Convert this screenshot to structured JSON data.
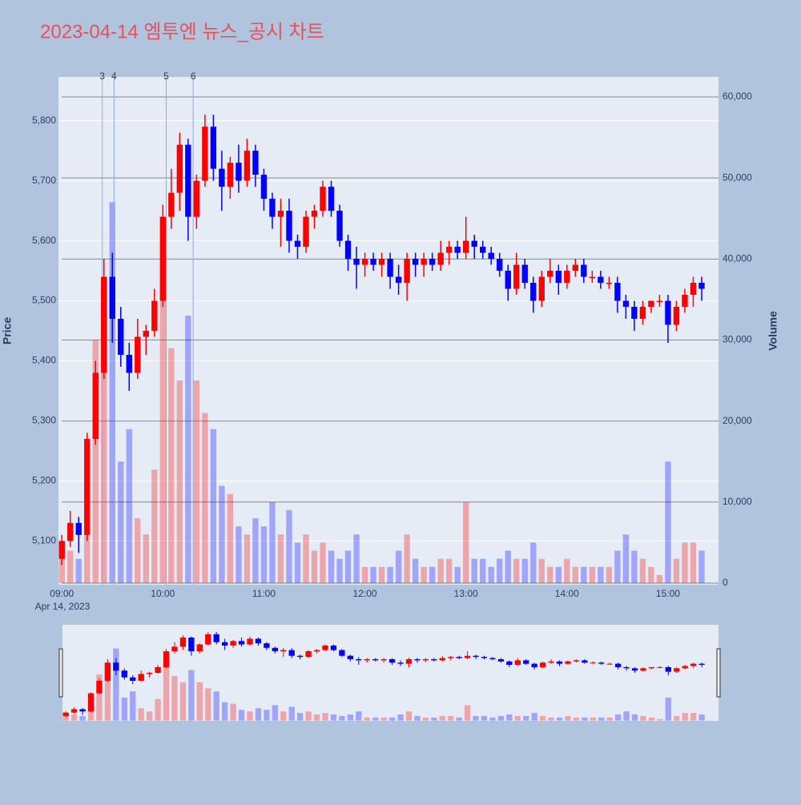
{
  "chart_data": {
    "type": "candlestick",
    "title": "2023-04-14 엠투엔 뉴스_공시 차트",
    "y_title": "Price",
    "y2_title": "Volume",
    "x_sublabel": "Apr 14, 2023",
    "up_color": "#ff0000",
    "down_color": "#0000ff",
    "xlim": [
      "08:58",
      "15:30"
    ],
    "xticks": [
      "09:00",
      "10:00",
      "11:00",
      "12:00",
      "13:00",
      "14:00",
      "15:00"
    ],
    "ylim": [
      5027,
      5873
    ],
    "yticks": [
      {
        "value": 5100,
        "label": "5,100"
      },
      {
        "value": 5200,
        "label": "5,200"
      },
      {
        "value": 5300,
        "label": "5,300"
      },
      {
        "value": 5400,
        "label": "5,400"
      },
      {
        "value": 5500,
        "label": "5,500"
      },
      {
        "value": 5600,
        "label": "5,600"
      },
      {
        "value": 5700,
        "label": "5,700"
      },
      {
        "value": 5800,
        "label": "5,800"
      }
    ],
    "y2lim": [
      -200,
      62470
    ],
    "y2ticks": [
      0,
      {
        "value": 10000,
        "label": "10,000"
      },
      {
        "value": 20000,
        "label": "20,000"
      },
      {
        "value": 30000,
        "label": "30,000"
      },
      {
        "value": 40000,
        "label": "40,000"
      },
      {
        "value": 50000,
        "label": "50,000"
      },
      {
        "value": 60000,
        "label": "60,000"
      }
    ],
    "events": [
      {
        "x": "09:24",
        "label": "3"
      },
      {
        "x": "09:31",
        "label": "4"
      },
      {
        "x": "10:02",
        "label": "5"
      },
      {
        "x": "10:18",
        "label": "6"
      }
    ],
    "x": [
      "09:00",
      "09:05",
      "09:10",
      "09:15",
      "09:20",
      "09:25",
      "09:30",
      "09:35",
      "09:40",
      "09:45",
      "09:50",
      "09:55",
      "10:00",
      "10:05",
      "10:10",
      "10:15",
      "10:20",
      "10:25",
      "10:30",
      "10:35",
      "10:40",
      "10:45",
      "10:50",
      "10:55",
      "11:00",
      "11:05",
      "11:10",
      "11:15",
      "11:20",
      "11:25",
      "11:30",
      "11:35",
      "11:40",
      "11:45",
      "11:50",
      "11:55",
      "12:00",
      "12:05",
      "12:10",
      "12:15",
      "12:20",
      "12:25",
      "12:30",
      "12:35",
      "12:40",
      "12:45",
      "12:50",
      "12:55",
      "13:00",
      "13:05",
      "13:10",
      "13:15",
      "13:20",
      "13:25",
      "13:30",
      "13:35",
      "13:40",
      "13:45",
      "13:50",
      "13:55",
      "14:00",
      "14:05",
      "14:10",
      "14:15",
      "14:20",
      "14:25",
      "14:30",
      "14:35",
      "14:40",
      "14:45",
      "14:50",
      "14:55",
      "15:00",
      "15:05",
      "15:10",
      "15:15",
      "15:20"
    ],
    "open": [
      5070,
      5100,
      5130,
      5110,
      5270,
      5380,
      5540,
      5470,
      5410,
      5380,
      5440,
      5450,
      5500,
      5640,
      5680,
      5760,
      5640,
      5700,
      5790,
      5720,
      5690,
      5730,
      5700,
      5750,
      5710,
      5670,
      5640,
      5650,
      5600,
      5590,
      5640,
      5650,
      5690,
      5650,
      5600,
      5570,
      5560,
      5570,
      5560,
      5570,
      5540,
      5530,
      5570,
      5560,
      5570,
      5560,
      5580,
      5590,
      5580,
      5600,
      5590,
      5580,
      5570,
      5550,
      5520,
      5560,
      5530,
      5500,
      5540,
      5550,
      5530,
      5550,
      5560,
      5540,
      5540,
      5530,
      5530,
      5500,
      5490,
      5470,
      5490,
      5500,
      5500,
      5460,
      5490,
      5510,
      5530
    ],
    "high": [
      5110,
      5150,
      5140,
      5280,
      5400,
      5570,
      5580,
      5490,
      5430,
      5470,
      5460,
      5520,
      5660,
      5720,
      5780,
      5770,
      5710,
      5810,
      5810,
      5750,
      5740,
      5760,
      5770,
      5760,
      5720,
      5680,
      5670,
      5670,
      5610,
      5650,
      5660,
      5700,
      5700,
      5660,
      5610,
      5590,
      5580,
      5580,
      5580,
      5580,
      5560,
      5580,
      5580,
      5580,
      5580,
      5600,
      5600,
      5600,
      5640,
      5610,
      5600,
      5590,
      5580,
      5560,
      5580,
      5570,
      5540,
      5550,
      5570,
      5560,
      5560,
      5570,
      5570,
      5550,
      5550,
      5540,
      5540,
      5510,
      5500,
      5500,
      5500,
      5510,
      5510,
      5500,
      5520,
      5540,
      5540
    ],
    "low": [
      5060,
      5090,
      5080,
      5100,
      5260,
      5370,
      5430,
      5390,
      5350,
      5370,
      5410,
      5440,
      5490,
      5620,
      5650,
      5600,
      5620,
      5690,
      5700,
      5650,
      5670,
      5680,
      5690,
      5690,
      5650,
      5620,
      5590,
      5580,
      5570,
      5580,
      5620,
      5640,
      5640,
      5590,
      5550,
      5520,
      5540,
      5550,
      5540,
      5520,
      5510,
      5500,
      5540,
      5540,
      5550,
      5550,
      5560,
      5570,
      5570,
      5570,
      5570,
      5560,
      5540,
      5500,
      5510,
      5520,
      5480,
      5490,
      5530,
      5510,
      5520,
      5540,
      5530,
      5530,
      5520,
      5520,
      5480,
      5470,
      5450,
      5460,
      5480,
      5490,
      5430,
      5450,
      5480,
      5490,
      5500
    ],
    "close": [
      5100,
      5130,
      5110,
      5270,
      5380,
      5540,
      5470,
      5410,
      5380,
      5440,
      5450,
      5500,
      5640,
      5680,
      5760,
      5640,
      5700,
      5790,
      5720,
      5690,
      5730,
      5700,
      5750,
      5710,
      5670,
      5640,
      5650,
      5600,
      5590,
      5640,
      5650,
      5690,
      5650,
      5600,
      5570,
      5560,
      5570,
      5560,
      5570,
      5540,
      5530,
      5570,
      5560,
      5570,
      5560,
      5580,
      5590,
      5580,
      5600,
      5590,
      5580,
      5570,
      5550,
      5520,
      5560,
      5530,
      5500,
      5540,
      5550,
      5530,
      5550,
      5560,
      5540,
      5540,
      5530,
      5530,
      5500,
      5490,
      5470,
      5490,
      5500,
      5500,
      5460,
      5490,
      5510,
      5530,
      5520
    ],
    "volume": [
      5000,
      4000,
      3000,
      12000,
      30000,
      37000,
      47000,
      15000,
      19000,
      8000,
      6000,
      14000,
      37000,
      29000,
      25000,
      33000,
      25000,
      21000,
      19000,
      12000,
      11000,
      7000,
      6000,
      8000,
      7000,
      10000,
      6000,
      9000,
      5000,
      6000,
      4000,
      5000,
      4000,
      3000,
      4000,
      6000,
      2000,
      2000,
      2000,
      2000,
      4000,
      6000,
      3000,
      2000,
      2000,
      3000,
      3000,
      2000,
      10000,
      3000,
      3000,
      2000,
      3000,
      4000,
      3000,
      3000,
      5000,
      3000,
      2000,
      2000,
      3000,
      2000,
      2000,
      2000,
      2000,
      2000,
      4000,
      6000,
      4000,
      3000,
      2000,
      1000,
      15000,
      3000,
      5000,
      5000,
      4000
    ]
  }
}
